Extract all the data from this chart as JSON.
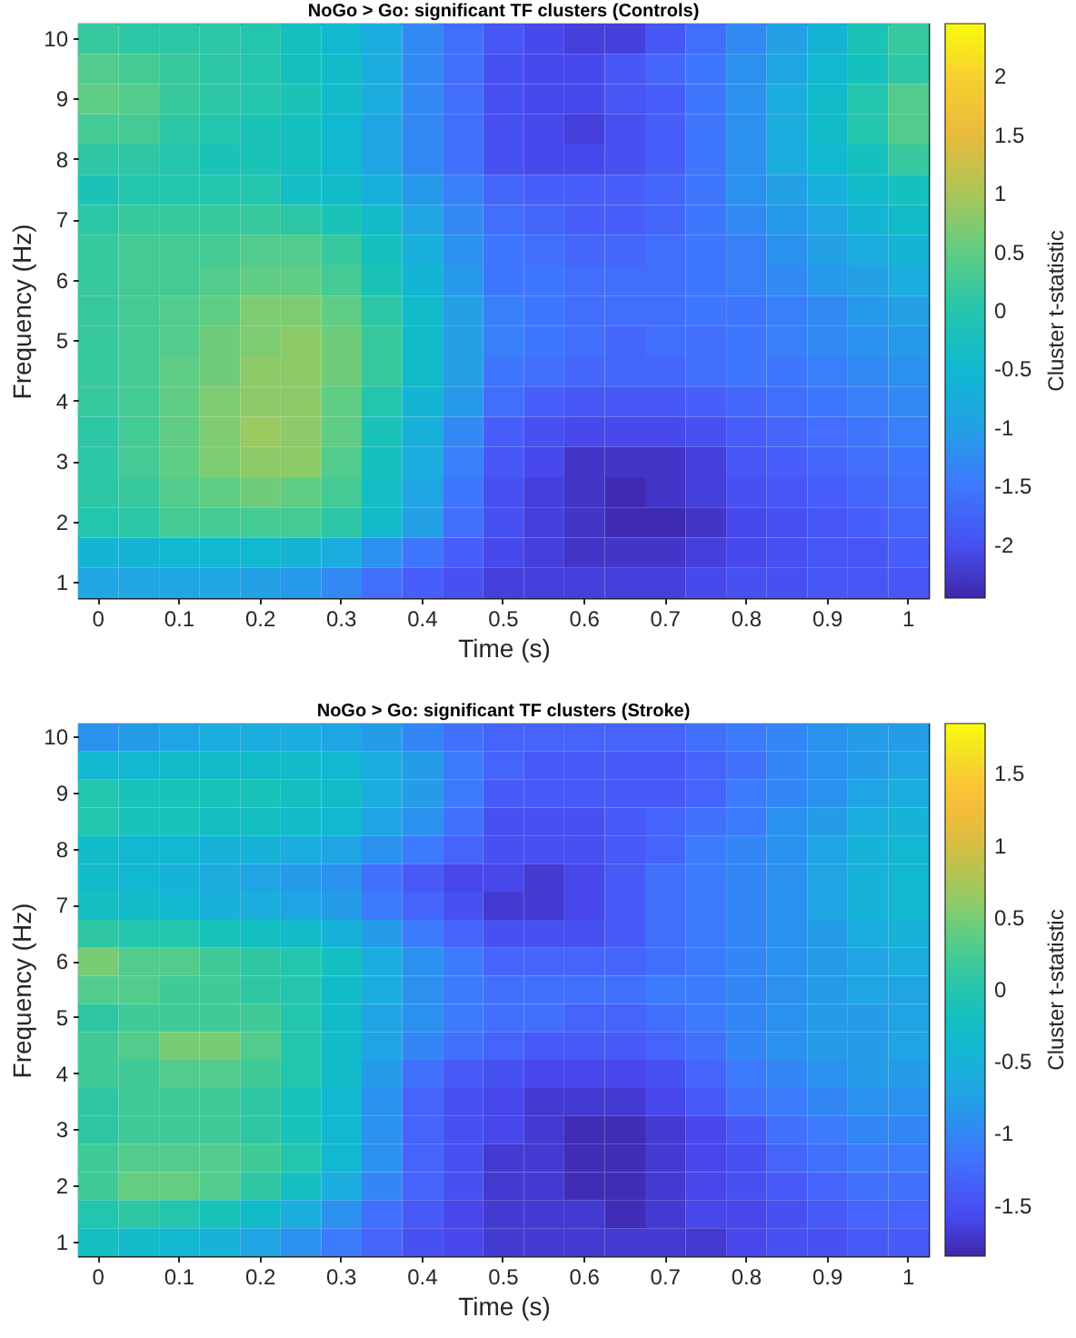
{
  "chart_data": [
    {
      "type": "heatmap",
      "title": "NoGo > Go: significant TF clusters (Controls)",
      "xlabel": "Time (s)",
      "ylabel": "Frequency (Hz)",
      "clabel": "Cluster t-statistic",
      "categories": [
        "0",
        null,
        "0.1",
        null,
        "0.2",
        null,
        "0.3",
        null,
        "0.4",
        null,
        "0.5",
        null,
        "0.6",
        null,
        "0.7",
        null,
        "0.8",
        null,
        "0.9",
        null,
        "1"
      ],
      "y_categories": [
        "10",
        null,
        "9",
        null,
        "8",
        null,
        "7",
        null,
        "6",
        null,
        "5",
        null,
        "4",
        null,
        "3",
        null,
        "2",
        null,
        "1"
      ],
      "cells": [
        [
          0.2,
          0.1,
          0.1,
          0.1,
          0.0,
          -0.2,
          -0.5,
          -0.8,
          -1.3,
          -1.6,
          -1.9,
          -2.1,
          -2.2,
          -2.2,
          -1.9,
          -1.6,
          -1.3,
          -1.0,
          -0.6,
          -0.1,
          0.2
        ],
        [
          0.4,
          0.3,
          0.2,
          0.1,
          0.0,
          -0.2,
          -0.4,
          -0.8,
          -1.3,
          -1.6,
          -2.0,
          -2.1,
          -2.1,
          -1.9,
          -1.7,
          -1.5,
          -1.2,
          -0.9,
          -0.5,
          -0.2,
          0.1
        ],
        [
          0.5,
          0.4,
          0.2,
          0.1,
          0.0,
          -0.1,
          -0.4,
          -0.8,
          -1.3,
          -1.6,
          -2.0,
          -2.1,
          -2.1,
          -1.9,
          -1.8,
          -1.5,
          -1.2,
          -0.8,
          -0.4,
          0.0,
          0.4
        ],
        [
          0.3,
          0.3,
          0.1,
          0.0,
          -0.1,
          -0.2,
          -0.5,
          -0.9,
          -1.3,
          -1.6,
          -2.0,
          -2.1,
          -2.2,
          -2.0,
          -1.8,
          -1.5,
          -1.2,
          -0.8,
          -0.4,
          0.0,
          0.4
        ],
        [
          0.1,
          0.1,
          0.0,
          -0.1,
          -0.1,
          -0.2,
          -0.5,
          -0.9,
          -1.3,
          -1.6,
          -2.0,
          -2.1,
          -2.1,
          -2.0,
          -1.8,
          -1.5,
          -1.2,
          -0.8,
          -0.5,
          -0.2,
          0.2
        ],
        [
          -0.1,
          0.0,
          0.0,
          0.0,
          0.0,
          -0.3,
          -0.4,
          -0.7,
          -1.1,
          -1.4,
          -1.7,
          -1.8,
          -1.8,
          -1.8,
          -1.7,
          -1.5,
          -1.2,
          -1.0,
          -0.7,
          -0.4,
          -0.2
        ],
        [
          0.1,
          0.2,
          0.2,
          0.2,
          0.2,
          0.1,
          -0.1,
          -0.4,
          -0.9,
          -1.3,
          -1.6,
          -1.7,
          -1.8,
          -1.8,
          -1.7,
          -1.5,
          -1.3,
          -1.1,
          -0.9,
          -0.6,
          -0.4
        ],
        [
          0.2,
          0.3,
          0.3,
          0.3,
          0.4,
          0.4,
          0.2,
          -0.2,
          -0.7,
          -1.2,
          -1.5,
          -1.6,
          -1.7,
          -1.7,
          -1.6,
          -1.5,
          -1.4,
          -1.2,
          -1.0,
          -0.8,
          -0.6
        ],
        [
          0.2,
          0.3,
          0.3,
          0.4,
          0.5,
          0.5,
          0.3,
          -0.1,
          -0.6,
          -1.1,
          -1.5,
          -1.5,
          -1.6,
          -1.6,
          -1.6,
          -1.5,
          -1.4,
          -1.3,
          -1.1,
          -1.0,
          -0.8
        ],
        [
          0.2,
          0.3,
          0.4,
          0.5,
          0.7,
          0.7,
          0.5,
          0.1,
          -0.4,
          -1.0,
          -1.4,
          -1.5,
          -1.6,
          -1.6,
          -1.6,
          -1.5,
          -1.5,
          -1.4,
          -1.3,
          -1.1,
          -1.0
        ],
        [
          0.2,
          0.3,
          0.4,
          0.6,
          0.7,
          0.8,
          0.6,
          0.2,
          -0.4,
          -1.0,
          -1.4,
          -1.5,
          -1.6,
          -1.7,
          -1.6,
          -1.6,
          -1.5,
          -1.4,
          -1.3,
          -1.2,
          -1.1
        ],
        [
          0.2,
          0.3,
          0.5,
          0.6,
          0.8,
          0.8,
          0.6,
          0.2,
          -0.4,
          -1.0,
          -1.5,
          -1.6,
          -1.7,
          -1.7,
          -1.7,
          -1.6,
          -1.5,
          -1.5,
          -1.4,
          -1.3,
          -1.2
        ],
        [
          0.2,
          0.3,
          0.5,
          0.7,
          0.8,
          0.8,
          0.5,
          0.0,
          -0.6,
          -1.1,
          -1.6,
          -1.8,
          -1.9,
          -1.9,
          -1.9,
          -1.8,
          -1.7,
          -1.6,
          -1.5,
          -1.4,
          -1.3
        ],
        [
          0.1,
          0.3,
          0.5,
          0.7,
          0.9,
          0.8,
          0.5,
          -0.1,
          -0.7,
          -1.3,
          -1.8,
          -2.0,
          -2.1,
          -2.1,
          -2.1,
          -2.0,
          -1.8,
          -1.7,
          -1.6,
          -1.5,
          -1.4
        ],
        [
          0.1,
          0.3,
          0.5,
          0.7,
          0.8,
          0.8,
          0.4,
          -0.2,
          -0.8,
          -1.4,
          -1.9,
          -2.1,
          -2.3,
          -2.3,
          -2.3,
          -2.2,
          -1.9,
          -1.8,
          -1.7,
          -1.6,
          -1.5
        ],
        [
          0.1,
          0.2,
          0.4,
          0.5,
          0.6,
          0.5,
          0.3,
          -0.3,
          -0.9,
          -1.5,
          -2.0,
          -2.2,
          -2.3,
          -2.4,
          -2.3,
          -2.2,
          -2.0,
          -1.9,
          -1.8,
          -1.7,
          -1.6
        ],
        [
          0.0,
          0.1,
          0.3,
          0.3,
          0.3,
          0.3,
          0.1,
          -0.4,
          -1.0,
          -1.6,
          -2.0,
          -2.2,
          -2.3,
          -2.4,
          -2.4,
          -2.3,
          -2.1,
          -2.0,
          -1.9,
          -1.8,
          -1.7
        ],
        [
          -0.6,
          -0.6,
          -0.5,
          -0.5,
          -0.5,
          -0.6,
          -0.8,
          -1.2,
          -1.5,
          -1.8,
          -2.1,
          -2.2,
          -2.3,
          -2.3,
          -2.3,
          -2.2,
          -2.1,
          -2.0,
          -1.9,
          -1.9,
          -1.8
        ],
        [
          -0.9,
          -0.9,
          -0.9,
          -0.9,
          -1.0,
          -1.1,
          -1.3,
          -1.6,
          -1.8,
          -2.0,
          -2.2,
          -2.2,
          -2.2,
          -2.2,
          -2.2,
          -2.1,
          -2.0,
          -2.0,
          -1.9,
          -1.9,
          -1.9
        ]
      ],
      "clim": [
        -2.45,
        2.45
      ],
      "cticks": [
        -2,
        -1.5,
        -1,
        -0.5,
        0,
        0.5,
        1,
        1.5,
        2
      ]
    },
    {
      "type": "heatmap",
      "title": "NoGo > Go: significant TF clusters (Stroke)",
      "xlabel": "Time (s)",
      "ylabel": "Frequency (Hz)",
      "clabel": "Cluster t-statistic",
      "categories": [
        "0",
        null,
        "0.1",
        null,
        "0.2",
        null,
        "0.3",
        null,
        "0.4",
        null,
        "0.5",
        null,
        "0.6",
        null,
        "0.7",
        null,
        "0.8",
        null,
        "0.9",
        null,
        "1"
      ],
      "y_categories": [
        "10",
        null,
        "9",
        null,
        "8",
        null,
        "7",
        null,
        "6",
        null,
        "5",
        null,
        "4",
        null,
        "3",
        null,
        "2",
        null,
        "1"
      ],
      "cells": [
        [
          -0.9,
          -0.8,
          -0.7,
          -0.6,
          -0.6,
          -0.6,
          -0.7,
          -0.8,
          -1.0,
          -1.2,
          -1.3,
          -1.3,
          -1.3,
          -1.3,
          -1.3,
          -1.2,
          -1.1,
          -1.0,
          -0.9,
          -0.8,
          -0.8
        ],
        [
          -0.4,
          -0.4,
          -0.3,
          -0.3,
          -0.3,
          -0.3,
          -0.4,
          -0.6,
          -0.8,
          -1.1,
          -1.3,
          -1.4,
          -1.4,
          -1.4,
          -1.4,
          -1.3,
          -1.2,
          -1.0,
          -0.9,
          -0.8,
          -0.7
        ],
        [
          0.0,
          -0.1,
          -0.1,
          -0.1,
          -0.1,
          -0.2,
          -0.3,
          -0.6,
          -0.8,
          -1.1,
          -1.4,
          -1.4,
          -1.4,
          -1.4,
          -1.4,
          -1.3,
          -1.1,
          -1.0,
          -0.9,
          -0.7,
          -0.6
        ],
        [
          0.0,
          -0.1,
          -0.1,
          -0.2,
          -0.2,
          -0.3,
          -0.4,
          -0.7,
          -0.9,
          -1.2,
          -1.5,
          -1.5,
          -1.5,
          -1.4,
          -1.3,
          -1.2,
          -1.1,
          -0.9,
          -0.8,
          -0.6,
          -0.5
        ],
        [
          -0.3,
          -0.4,
          -0.4,
          -0.5,
          -0.5,
          -0.6,
          -0.7,
          -0.9,
          -1.1,
          -1.3,
          -1.5,
          -1.5,
          -1.5,
          -1.4,
          -1.3,
          -1.1,
          -1.0,
          -0.9,
          -0.7,
          -0.5,
          -0.4
        ],
        [
          -0.3,
          -0.4,
          -0.5,
          -0.6,
          -0.7,
          -0.8,
          -0.9,
          -1.2,
          -1.4,
          -1.6,
          -1.6,
          -1.7,
          -1.6,
          -1.4,
          -1.2,
          -1.1,
          -1.0,
          -0.9,
          -0.7,
          -0.5,
          -0.4
        ],
        [
          -0.2,
          -0.3,
          -0.4,
          -0.5,
          -0.6,
          -0.7,
          -0.8,
          -1.1,
          -1.3,
          -1.5,
          -1.7,
          -1.7,
          -1.6,
          -1.4,
          -1.2,
          -1.1,
          -1.0,
          -0.9,
          -0.7,
          -0.5,
          -0.4
        ],
        [
          0.1,
          0.0,
          0.0,
          -0.1,
          -0.2,
          -0.3,
          -0.5,
          -0.8,
          -1.1,
          -1.3,
          -1.5,
          -1.5,
          -1.5,
          -1.4,
          -1.2,
          -1.1,
          -1.0,
          -0.9,
          -0.8,
          -0.6,
          -0.5
        ],
        [
          0.5,
          0.3,
          0.3,
          0.2,
          0.1,
          0.0,
          -0.2,
          -0.6,
          -0.9,
          -1.1,
          -1.3,
          -1.3,
          -1.3,
          -1.3,
          -1.2,
          -1.1,
          -1.0,
          -0.9,
          -0.8,
          -0.7,
          -0.6
        ],
        [
          0.3,
          0.3,
          0.2,
          0.2,
          0.1,
          0.0,
          -0.3,
          -0.6,
          -0.9,
          -1.1,
          -1.2,
          -1.2,
          -1.2,
          -1.2,
          -1.1,
          -1.1,
          -1.0,
          -0.9,
          -0.8,
          -0.7,
          -0.7
        ],
        [
          0.1,
          0.2,
          0.2,
          0.2,
          0.2,
          0.0,
          -0.3,
          -0.7,
          -0.9,
          -1.1,
          -1.2,
          -1.2,
          -1.3,
          -1.3,
          -1.2,
          -1.1,
          -1.0,
          -0.9,
          -0.8,
          -0.8,
          -0.7
        ],
        [
          0.2,
          0.3,
          0.5,
          0.5,
          0.3,
          0.0,
          -0.3,
          -0.7,
          -1.0,
          -1.2,
          -1.3,
          -1.4,
          -1.4,
          -1.4,
          -1.3,
          -1.2,
          -1.0,
          -0.9,
          -0.8,
          -0.8,
          -0.7
        ],
        [
          0.2,
          0.2,
          0.3,
          0.3,
          0.2,
          0.0,
          -0.3,
          -0.8,
          -1.2,
          -1.4,
          -1.5,
          -1.6,
          -1.6,
          -1.6,
          -1.5,
          -1.3,
          -1.1,
          -1.0,
          -0.9,
          -0.8,
          -0.8
        ],
        [
          0.1,
          0.2,
          0.2,
          0.2,
          0.1,
          -0.1,
          -0.4,
          -0.9,
          -1.3,
          -1.5,
          -1.6,
          -1.7,
          -1.7,
          -1.7,
          -1.6,
          -1.4,
          -1.2,
          -1.1,
          -1.0,
          -0.9,
          -0.9
        ],
        [
          0.1,
          0.2,
          0.2,
          0.2,
          0.1,
          -0.1,
          -0.4,
          -0.9,
          -1.3,
          -1.5,
          -1.6,
          -1.7,
          -1.8,
          -1.8,
          -1.7,
          -1.6,
          -1.4,
          -1.2,
          -1.1,
          -1.0,
          -1.0
        ],
        [
          0.2,
          0.3,
          0.3,
          0.3,
          0.2,
          0.0,
          -0.4,
          -0.9,
          -1.3,
          -1.5,
          -1.7,
          -1.7,
          -1.8,
          -1.8,
          -1.7,
          -1.6,
          -1.5,
          -1.3,
          -1.2,
          -1.1,
          -1.1
        ],
        [
          0.2,
          0.4,
          0.4,
          0.3,
          0.1,
          -0.2,
          -0.6,
          -1.0,
          -1.3,
          -1.5,
          -1.7,
          -1.7,
          -1.8,
          -1.8,
          -1.7,
          -1.6,
          -1.5,
          -1.4,
          -1.3,
          -1.2,
          -1.2
        ],
        [
          0.0,
          0.1,
          0.0,
          -0.1,
          -0.3,
          -0.6,
          -0.9,
          -1.2,
          -1.4,
          -1.6,
          -1.7,
          -1.7,
          -1.7,
          -1.8,
          -1.7,
          -1.6,
          -1.6,
          -1.5,
          -1.4,
          -1.3,
          -1.3
        ],
        [
          -0.2,
          -0.3,
          -0.4,
          -0.5,
          -0.7,
          -0.9,
          -1.1,
          -1.3,
          -1.5,
          -1.6,
          -1.7,
          -1.7,
          -1.7,
          -1.7,
          -1.7,
          -1.7,
          -1.6,
          -1.5,
          -1.5,
          -1.4,
          -1.4
        ]
      ],
      "clim": [
        -1.85,
        1.85
      ],
      "cticks": [
        -1.5,
        -1,
        -0.5,
        0,
        0.5,
        1,
        1.5
      ]
    }
  ]
}
